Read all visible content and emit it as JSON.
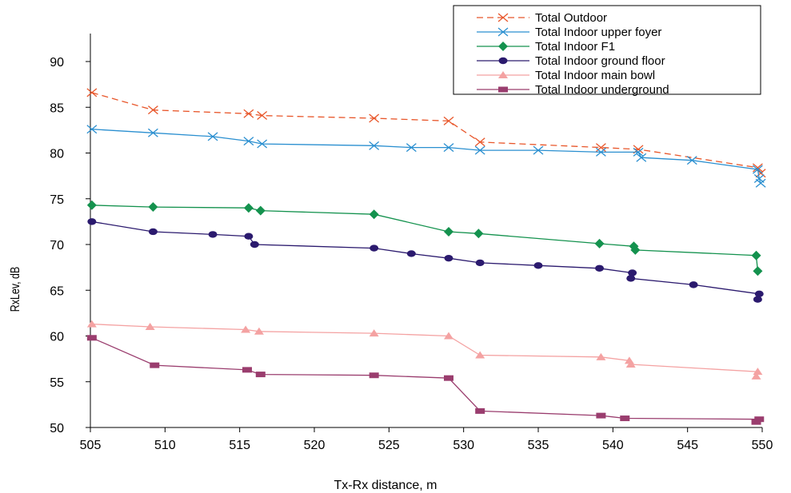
{
  "chart_data": {
    "type": "line",
    "title": "",
    "xlabel": "Tx-Rx distance, m",
    "ylabel": "RxLev, dB",
    "xlim": [
      505,
      550
    ],
    "ylim": [
      50,
      90
    ],
    "x_ticks": [
      505,
      510,
      515,
      520,
      525,
      530,
      535,
      540,
      545,
      550
    ],
    "y_ticks": [
      50,
      55,
      60,
      65,
      70,
      75,
      80,
      85,
      90
    ],
    "grid": false,
    "legend_position": "top-right",
    "series": [
      {
        "name": "Total Outdoor",
        "color": "#e8562a",
        "dash": "dashed",
        "marker": "x",
        "points": [
          [
            505.1,
            86.6
          ],
          [
            509.2,
            84.7
          ],
          [
            515.6,
            84.3
          ],
          [
            516.5,
            84.1
          ],
          [
            524,
            83.8
          ],
          [
            529,
            83.5
          ],
          [
            531.1,
            81.2
          ],
          [
            539.2,
            80.6
          ],
          [
            541.7,
            80.4
          ],
          [
            549.7,
            78.4
          ],
          [
            549.9,
            77.8
          ]
        ]
      },
      {
        "name": "Total Indoor upper foyer",
        "color": "#2a8fd0",
        "dash": "solid",
        "marker": "x",
        "points": [
          [
            505.1,
            82.6
          ],
          [
            509.2,
            82.2
          ],
          [
            513.2,
            81.8
          ],
          [
            515.6,
            81.3
          ],
          [
            516.5,
            81.0
          ],
          [
            524,
            80.8
          ],
          [
            526.5,
            80.6
          ],
          [
            529,
            80.6
          ],
          [
            531.1,
            80.3
          ],
          [
            535,
            80.3
          ],
          [
            539.2,
            80.1
          ],
          [
            541.7,
            80.1
          ],
          [
            541.9,
            79.5
          ],
          [
            545.3,
            79.2
          ],
          [
            549.7,
            78.2
          ],
          [
            549.8,
            77.2
          ],
          [
            549.9,
            76.7
          ]
        ]
      },
      {
        "name": "Total Indoor F1",
        "color": "#14924e",
        "dash": "solid",
        "marker": "diamond",
        "points": [
          [
            505.1,
            74.3
          ],
          [
            509.2,
            74.1
          ],
          [
            515.6,
            74.0
          ],
          [
            516.4,
            73.7
          ],
          [
            524,
            73.3
          ],
          [
            529,
            71.4
          ],
          [
            531,
            71.2
          ],
          [
            539.1,
            70.1
          ],
          [
            541.4,
            69.8
          ],
          [
            541.5,
            69.4
          ],
          [
            549.6,
            68.8
          ],
          [
            549.7,
            67.1
          ]
        ]
      },
      {
        "name": "Total Indoor ground floor",
        "color": "#2b1a6e",
        "dash": "solid",
        "marker": "circle",
        "points": [
          [
            505.1,
            72.5
          ],
          [
            509.2,
            71.4
          ],
          [
            513.2,
            71.1
          ],
          [
            515.6,
            70.9
          ],
          [
            516,
            70.0
          ],
          [
            524,
            69.6
          ],
          [
            526.5,
            69.0
          ],
          [
            529,
            68.5
          ],
          [
            531.1,
            68.0
          ],
          [
            535,
            67.7
          ],
          [
            539.1,
            67.4
          ],
          [
            541.3,
            66.9
          ],
          [
            541.2,
            66.3
          ],
          [
            545.4,
            65.6
          ],
          [
            549.8,
            64.6
          ],
          [
            549.7,
            64.0
          ]
        ]
      },
      {
        "name": "Total Indoor main bowl",
        "color": "#f4a2a2",
        "dash": "solid",
        "marker": "triangle",
        "points": [
          [
            505.1,
            61.3
          ],
          [
            509,
            61.0
          ],
          [
            515.4,
            60.7
          ],
          [
            516.3,
            60.5
          ],
          [
            524,
            60.3
          ],
          [
            529,
            60.0
          ],
          [
            531.1,
            57.9
          ],
          [
            539.2,
            57.7
          ],
          [
            541.1,
            57.3
          ],
          [
            541.2,
            56.9
          ],
          [
            549.7,
            56.1
          ],
          [
            549.6,
            55.6
          ]
        ]
      },
      {
        "name": "Total Indoor underground",
        "color": "#9a3d6e",
        "dash": "solid",
        "marker": "square",
        "points": [
          [
            505.1,
            59.8
          ],
          [
            509.3,
            56.8
          ],
          [
            515.5,
            56.3
          ],
          [
            516.4,
            55.8
          ],
          [
            524,
            55.7
          ],
          [
            529,
            55.4
          ],
          [
            531.1,
            51.8
          ],
          [
            539.2,
            51.3
          ],
          [
            540.8,
            51.0
          ],
          [
            549.8,
            50.9
          ],
          [
            549.6,
            50.6
          ]
        ]
      }
    ]
  }
}
